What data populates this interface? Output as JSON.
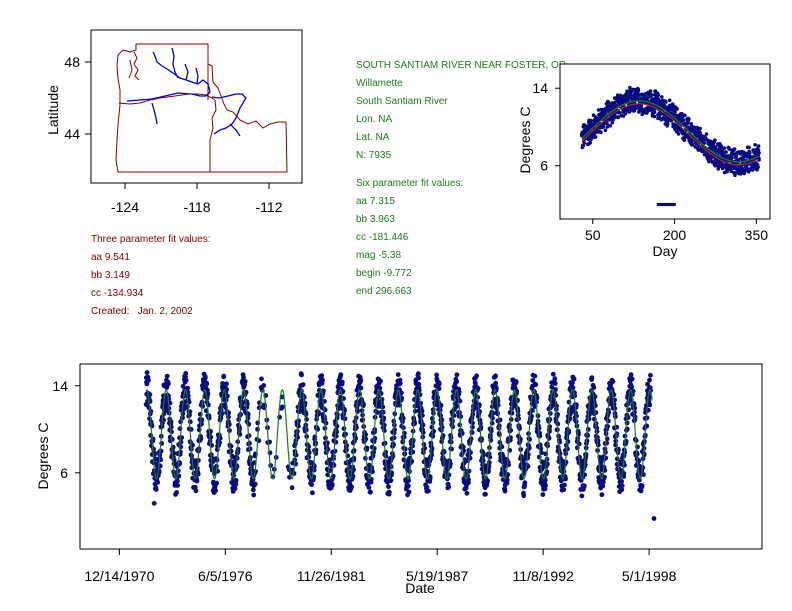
{
  "colors": {
    "map_border": "#8b0000",
    "river": "#0000cc",
    "points": "#0a0a80",
    "fit_line": "#1f7a1f",
    "fit_line2": "#c03030",
    "info_green": "#207a20",
    "info_red": "#8b0000"
  },
  "map": {
    "ylabel": "Latitude",
    "x_ticks": [
      "-124",
      "-118",
      "-112"
    ],
    "y_ticks": [
      "48",
      "44"
    ]
  },
  "station_info": {
    "lines": [
      "SOUTH SANTIAM RIVER NEAR FOSTER, OR",
      "Willamette",
      "South Santiam River",
      "Lon. NA",
      "Lat. NA",
      "N: 7935"
    ],
    "six_param_title": "Six parameter fit values:",
    "six_param": [
      "aa 7.315",
      "bb 3.963",
      "cc -181.446",
      "mag -5.38",
      "begin -9.772",
      "end 296.663"
    ]
  },
  "three_param": {
    "title": "Three parameter fit values:",
    "values": [
      "aa 9.541",
      "bb 3.149",
      "cc -134.934"
    ],
    "created": "Created:   Jan. 2, 2002"
  },
  "chart_data": [
    {
      "type": "scatter",
      "title": "",
      "xlabel": "Day",
      "ylabel": "Degrees C",
      "x_ticks": [
        50,
        200,
        350
      ],
      "y_ticks": [
        6,
        14
      ],
      "xlim": [
        -10,
        375
      ],
      "ylim": [
        0.5,
        16.5
      ],
      "fit": {
        "type": "sinusoid",
        "mean": 9.541,
        "amplitude": 3.149,
        "phase": -134.934,
        "period": 365
      },
      "band": {
        "day_start": 30,
        "day_end": 355,
        "half_width": 1.3
      },
      "anomalies": [
        {
          "x_range": [
            170,
            200
          ],
          "y": 2.0
        },
        {
          "x_range": [
            180,
            200
          ],
          "y": 10.8
        }
      ]
    },
    {
      "type": "scatter",
      "title": "",
      "xlabel": "Date",
      "ylabel": "Degrees C",
      "x_tick_labels": [
        "12/14/1970",
        "6/5/1976",
        "11/26/1981",
        "5/19/1987",
        "11/8/1992",
        "5/1/1998"
      ],
      "x_ticks": [
        "1970-12-14",
        "1976-06-05",
        "1981-11-26",
        "1987-05-19",
        "1992-11-08",
        "1998-05-01"
      ],
      "y_ticks": [
        6,
        14
      ],
      "xlim": [
        "1968-12-01",
        "2004-03-01"
      ],
      "ylim": [
        -1,
        16
      ],
      "data_range": [
        "1972-05-01",
        "1998-06-01"
      ],
      "fit": {
        "type": "sinusoid",
        "mean": 9.541,
        "amplitude": 3.149,
        "phase": -134.934,
        "period": 365.25
      },
      "outliers": [
        {
          "date": "1998-08-01",
          "y": 1.8
        },
        {
          "date": "1972-10-01",
          "y": 3.2
        }
      ]
    }
  ]
}
